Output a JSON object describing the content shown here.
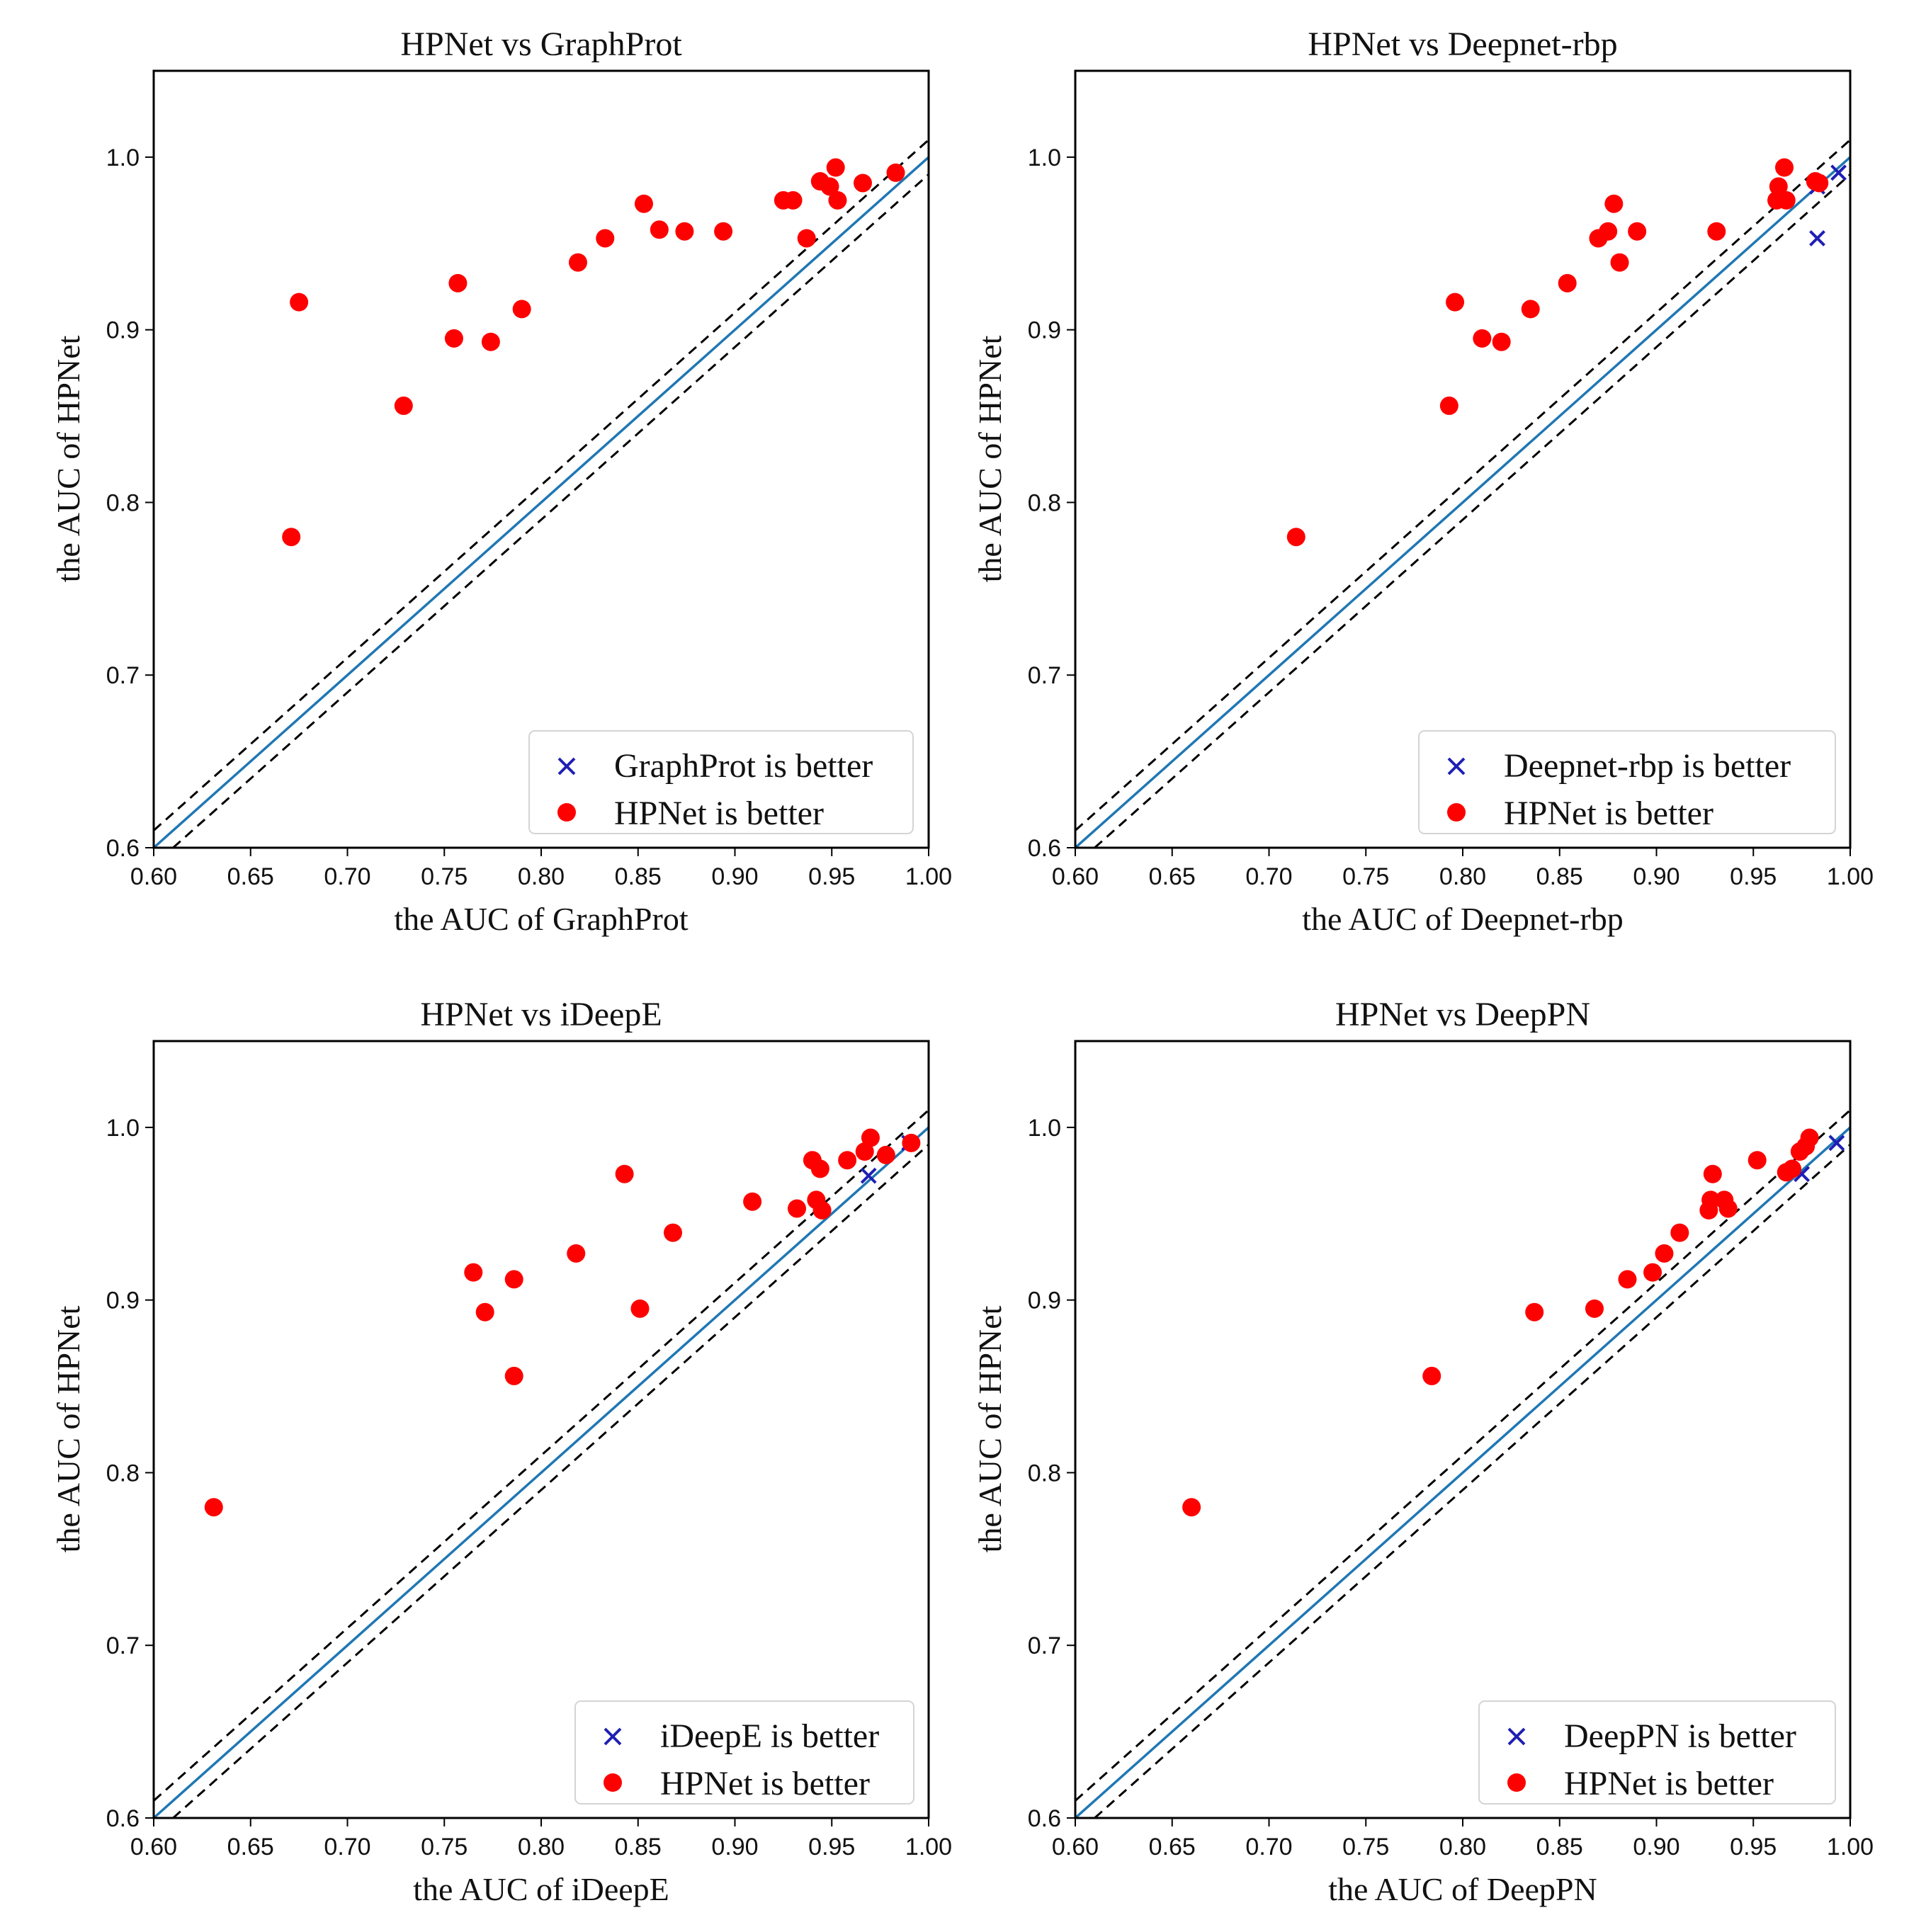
{
  "chart_data": [
    {
      "type": "scatter",
      "title": "HPNet vs GraphProt",
      "xlabel": "the AUC of GraphProt",
      "ylabel": "the AUC of HPNet",
      "xlim": [
        0.6,
        1.0
      ],
      "ylim": [
        0.6,
        1.05
      ],
      "xticks": [
        "0.60",
        "0.65",
        "0.70",
        "0.75",
        "0.80",
        "0.85",
        "0.90",
        "0.95",
        "1.00"
      ],
      "yticks": [
        "0.6",
        "0.7",
        "0.8",
        "0.9",
        "1.0"
      ],
      "legend_position": "lower-right",
      "colors": {
        "hpnet": "#ff0000",
        "other": "#1f1fb4",
        "diagonal": "#1f77b4",
        "band": "#000000"
      },
      "series": [
        {
          "name": "GraphProt is better",
          "marker": "x",
          "points": []
        },
        {
          "name": "HPNet is better",
          "marker": "circle",
          "points": [
            [
              0.671,
              0.78
            ],
            [
              0.675,
              0.916
            ],
            [
              0.729,
              0.856
            ],
            [
              0.755,
              0.895
            ],
            [
              0.757,
              0.927
            ],
            [
              0.774,
              0.893
            ],
            [
              0.79,
              0.912
            ],
            [
              0.819,
              0.939
            ],
            [
              0.833,
              0.953
            ],
            [
              0.853,
              0.973
            ],
            [
              0.861,
              0.958
            ],
            [
              0.874,
              0.957
            ],
            [
              0.894,
              0.957
            ],
            [
              0.925,
              0.975
            ],
            [
              0.93,
              0.975
            ],
            [
              0.937,
              0.953
            ],
            [
              0.944,
              0.986
            ],
            [
              0.949,
              0.983
            ],
            [
              0.952,
              0.994
            ],
            [
              0.953,
              0.975
            ],
            [
              0.966,
              0.985
            ],
            [
              0.983,
              0.991
            ]
          ]
        }
      ]
    },
    {
      "type": "scatter",
      "title": "HPNet vs Deepnet-rbp",
      "xlabel": "the AUC of Deepnet-rbp",
      "ylabel": "the AUC of HPNet",
      "xlim": [
        0.6,
        1.0
      ],
      "ylim": [
        0.6,
        1.05
      ],
      "xticks": [
        "0.60",
        "0.65",
        "0.70",
        "0.75",
        "0.80",
        "0.85",
        "0.90",
        "0.95",
        "1.00"
      ],
      "yticks": [
        "0.6",
        "0.7",
        "0.8",
        "0.9",
        "1.0"
      ],
      "legend_position": "lower-right",
      "colors": {
        "hpnet": "#ff0000",
        "other": "#1f1fb4",
        "diagonal": "#1f77b4",
        "band": "#000000"
      },
      "series": [
        {
          "name": "Deepnet-rbp is better",
          "marker": "x",
          "points": [
            [
              0.983,
              0.953
            ],
            [
              0.994,
              0.991
            ],
            [
              0.983,
              0.983
            ]
          ]
        },
        {
          "name": "HPNet is better",
          "marker": "circle",
          "points": [
            [
              0.714,
              0.78
            ],
            [
              0.793,
              0.856
            ],
            [
              0.796,
              0.916
            ],
            [
              0.81,
              0.895
            ],
            [
              0.82,
              0.893
            ],
            [
              0.835,
              0.912
            ],
            [
              0.854,
              0.927
            ],
            [
              0.87,
              0.953
            ],
            [
              0.875,
              0.957
            ],
            [
              0.878,
              0.973
            ],
            [
              0.881,
              0.939
            ],
            [
              0.89,
              0.957
            ],
            [
              0.931,
              0.957
            ],
            [
              0.962,
              0.975
            ],
            [
              0.963,
              0.983
            ],
            [
              0.966,
              0.994
            ],
            [
              0.967,
              0.975
            ],
            [
              0.982,
              0.986
            ],
            [
              0.984,
              0.985
            ]
          ]
        }
      ]
    },
    {
      "type": "scatter",
      "title": "HPNet vs iDeepE",
      "xlabel": "the AUC of iDeepE",
      "ylabel": "the AUC of HPNet",
      "xlim": [
        0.6,
        1.0
      ],
      "ylim": [
        0.6,
        1.05
      ],
      "xticks": [
        "0.60",
        "0.65",
        "0.70",
        "0.75",
        "0.80",
        "0.85",
        "0.90",
        "0.95",
        "1.00"
      ],
      "yticks": [
        "0.6",
        "0.7",
        "0.8",
        "0.9",
        "1.0"
      ],
      "legend_position": "lower-right",
      "colors": {
        "hpnet": "#ff0000",
        "other": "#1f1fb4",
        "diagonal": "#1f77b4",
        "band": "#000000"
      },
      "series": [
        {
          "name": "iDeepE is better",
          "marker": "x",
          "points": [
            [
              0.969,
              0.972
            ],
            [
              0.99,
              0.991
            ]
          ]
        },
        {
          "name": "HPNet is better",
          "marker": "circle",
          "points": [
            [
              0.631,
              0.78
            ],
            [
              0.765,
              0.916
            ],
            [
              0.771,
              0.893
            ],
            [
              0.786,
              0.856
            ],
            [
              0.786,
              0.912
            ],
            [
              0.818,
              0.927
            ],
            [
              0.843,
              0.973
            ],
            [
              0.851,
              0.895
            ],
            [
              0.868,
              0.939
            ],
            [
              0.909,
              0.957
            ],
            [
              0.932,
              0.953
            ],
            [
              0.94,
              0.981
            ],
            [
              0.942,
              0.958
            ],
            [
              0.944,
              0.976
            ],
            [
              0.945,
              0.952
            ],
            [
              0.958,
              0.981
            ],
            [
              0.967,
              0.986
            ],
            [
              0.97,
              0.994
            ],
            [
              0.978,
              0.984
            ],
            [
              0.991,
              0.991
            ]
          ]
        }
      ]
    },
    {
      "type": "scatter",
      "title": "HPNet vs DeepPN",
      "xlabel": "the AUC of DeepPN",
      "ylabel": "the AUC of HPNet",
      "xlim": [
        0.6,
        1.0
      ],
      "ylim": [
        0.6,
        1.05
      ],
      "xticks": [
        "0.60",
        "0.65",
        "0.70",
        "0.75",
        "0.80",
        "0.85",
        "0.90",
        "0.95",
        "1.00"
      ],
      "yticks": [
        "0.6",
        "0.7",
        "0.8",
        "0.9",
        "1.0"
      ],
      "legend_position": "lower-right",
      "colors": {
        "hpnet": "#ff0000",
        "other": "#1f1fb4",
        "diagonal": "#1f77b4",
        "band": "#000000"
      },
      "series": [
        {
          "name": "DeepPN is better",
          "marker": "x",
          "points": [
            [
              0.975,
              0.973
            ],
            [
              0.993,
              0.991
            ]
          ]
        },
        {
          "name": "HPNet is better",
          "marker": "circle",
          "points": [
            [
              0.66,
              0.78
            ],
            [
              0.784,
              0.856
            ],
            [
              0.837,
              0.893
            ],
            [
              0.868,
              0.895
            ],
            [
              0.885,
              0.912
            ],
            [
              0.898,
              0.916
            ],
            [
              0.904,
              0.927
            ],
            [
              0.912,
              0.939
            ],
            [
              0.927,
              0.952
            ],
            [
              0.928,
              0.958
            ],
            [
              0.929,
              0.973
            ],
            [
              0.935,
              0.958
            ],
            [
              0.937,
              0.953
            ],
            [
              0.952,
              0.981
            ],
            [
              0.967,
              0.974
            ],
            [
              0.97,
              0.976
            ],
            [
              0.974,
              0.986
            ],
            [
              0.977,
              0.989
            ],
            [
              0.979,
              0.994
            ]
          ]
        }
      ]
    }
  ]
}
